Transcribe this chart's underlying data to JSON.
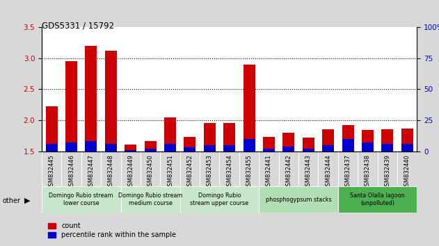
{
  "title": "GDS5331 / 15792",
  "samples": [
    "GSM832445",
    "GSM832446",
    "GSM832447",
    "GSM832448",
    "GSM832449",
    "GSM832450",
    "GSM832451",
    "GSM832452",
    "GSM832453",
    "GSM832454",
    "GSM832455",
    "GSM832441",
    "GSM832442",
    "GSM832443",
    "GSM832444",
    "GSM832437",
    "GSM832438",
    "GSM832439",
    "GSM832440"
  ],
  "count_values": [
    2.22,
    2.95,
    3.2,
    3.12,
    1.61,
    1.66,
    2.05,
    1.73,
    1.96,
    1.96,
    2.9,
    1.73,
    1.8,
    1.72,
    1.86,
    1.92,
    1.84,
    1.86,
    1.87
  ],
  "percentile_values": [
    6,
    7,
    8,
    6,
    1,
    2,
    6,
    3,
    5,
    5,
    10,
    2,
    4,
    2,
    5,
    10,
    7,
    6,
    6
  ],
  "ylim_left": [
    1.5,
    3.5
  ],
  "ylim_right": [
    0,
    100
  ],
  "yticks_left": [
    1.5,
    2.0,
    2.5,
    3.0,
    3.5
  ],
  "yticks_right": [
    0,
    25,
    50,
    75,
    100
  ],
  "groups": [
    {
      "label": "Domingo Rubio stream\nlower course",
      "start": 0,
      "end": 4
    },
    {
      "label": "Domingo Rubio stream\nmedium course",
      "start": 4,
      "end": 7
    },
    {
      "label": "Domingo Rubio\nstream upper course",
      "start": 7,
      "end": 11
    },
    {
      "label": "phosphogypsum stacks",
      "start": 11,
      "end": 15
    },
    {
      "label": "Santa Olalla lagoon\n(unpolluted)",
      "start": 15,
      "end": 19
    }
  ],
  "group_colors": [
    "#c8e6c9",
    "#c8e6c9",
    "#c8e6c9",
    "#b2dfb2",
    "#4caf50"
  ],
  "bar_color_red": "#cc0000",
  "bar_color_blue": "#0000cc",
  "bar_width": 0.6,
  "bg_color": "#d8d8d8",
  "xtick_bg": "#c8c8c8",
  "plot_bg": "#ffffff",
  "left_axis_color": "#cc0000",
  "right_axis_color": "#0000cc",
  "legend_count": "count",
  "legend_pct": "percentile rank within the sample",
  "other_label": "other",
  "dotted_lines": [
    2.0,
    2.5,
    3.0
  ],
  "right_tick_labels": [
    "0",
    "25",
    "50",
    "75",
    "100%"
  ]
}
